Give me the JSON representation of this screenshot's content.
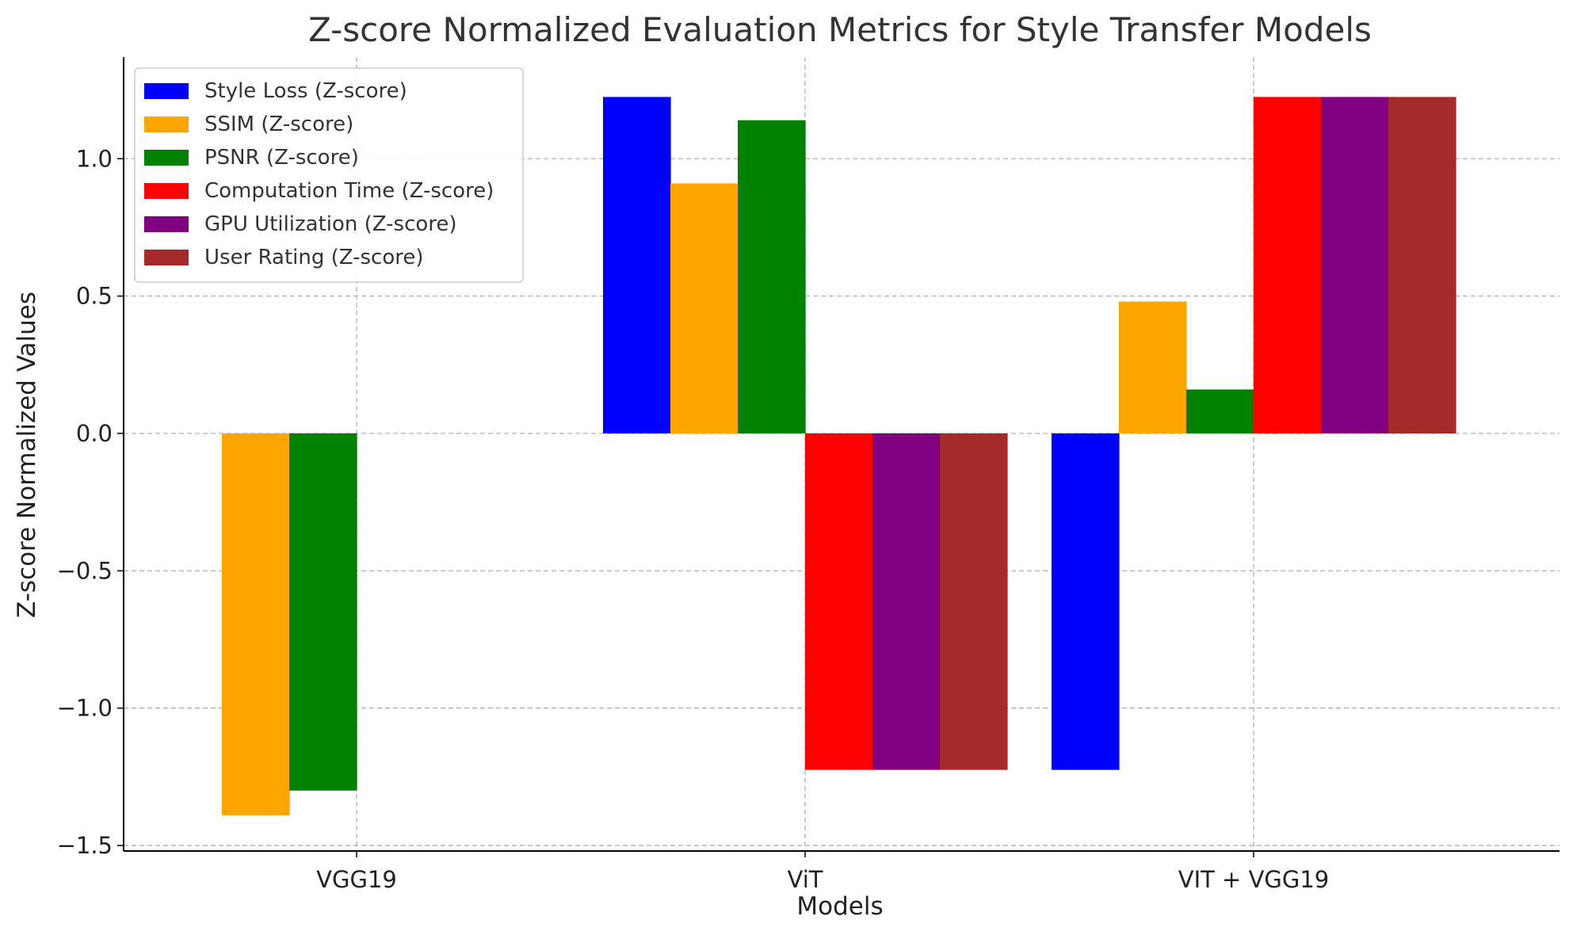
{
  "chart_data": {
    "type": "bar",
    "title": "Z-score Normalized Evaluation Metrics for Style Transfer Models",
    "xlabel": "Models",
    "ylabel": "Z-score Normalized Values",
    "categories": [
      "VGG19",
      "ViT",
      "VIT + VGG19"
    ],
    "ylim": [
      -1.52,
      1.37
    ],
    "yticks": [
      1.0,
      0.5,
      0.0,
      -0.5,
      -1.0,
      -1.5
    ],
    "ytick_labels": [
      "1.0",
      "0.5",
      "0.0",
      "−0.5",
      "−1.0",
      "−1.5"
    ],
    "grid": true,
    "legend_position": "top-left",
    "series": [
      {
        "name": "Style Loss (Z-score)",
        "color": "#0000ff",
        "values": [
          0.0,
          1.2247,
          -1.2247
        ]
      },
      {
        "name": "SSIM (Z-score)",
        "color": "#ffa500",
        "values": [
          -1.39,
          0.91,
          0.48
        ]
      },
      {
        "name": "PSNR (Z-score)",
        "color": "#008000",
        "values": [
          -1.3,
          1.14,
          0.16
        ]
      },
      {
        "name": "Computation Time (Z-score)",
        "color": "#ff0000",
        "values": [
          0.0,
          -1.2247,
          1.2247
        ]
      },
      {
        "name": "GPU Utilization (Z-score)",
        "color": "#800080",
        "values": [
          0.0,
          -1.2247,
          1.2247
        ]
      },
      {
        "name": "User Rating (Z-score)",
        "color": "#a52a2a",
        "values": [
          0.0,
          -1.2247,
          1.2247
        ]
      }
    ]
  }
}
